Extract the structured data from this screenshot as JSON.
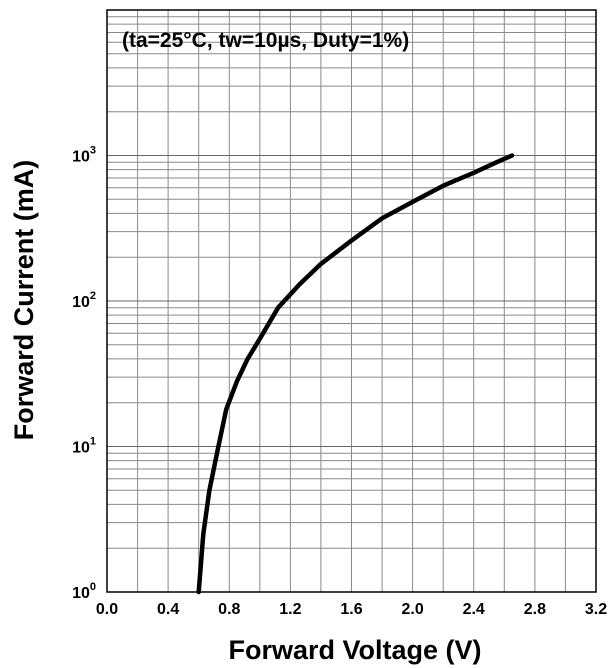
{
  "chart_data": {
    "type": "line",
    "title": "",
    "annotation": "(ta=25°C, tw=10µs, Duty=1%)",
    "xlabel": "Forward Voltage (V)",
    "ylabel": "Forward Current (mA)",
    "xlim": [
      0.0,
      3.2
    ],
    "ylim": [
      1,
      10000
    ],
    "yscale": "log",
    "grid": true,
    "x_ticks": [
      0.0,
      0.4,
      0.8,
      1.2,
      1.6,
      2.0,
      2.4,
      2.8,
      3.2
    ],
    "x_tick_labels": [
      "0.0",
      "0.4",
      "0.8",
      "1.2",
      "1.6",
      "2.0",
      "2.4",
      "2.8",
      "3.2"
    ],
    "y_ticks": [
      1,
      10,
      100,
      1000
    ],
    "y_tick_labels": [
      {
        "base": "10",
        "exp": "0"
      },
      {
        "base": "10",
        "exp": "1"
      },
      {
        "base": "10",
        "exp": "2"
      },
      {
        "base": "10",
        "exp": "3"
      }
    ],
    "series": [
      {
        "color": "#000000",
        "x": [
          0.6,
          0.63,
          0.67,
          0.72,
          0.78,
          0.85,
          0.92,
          1.0,
          1.12,
          1.26,
          1.4,
          1.6,
          1.8,
          2.0,
          2.2,
          2.4,
          2.55,
          2.65
        ],
        "y": [
          1.0,
          2.5,
          5.0,
          9.0,
          18.0,
          28.0,
          40.0,
          55.0,
          90.0,
          130.0,
          180.0,
          260.0,
          370.0,
          480.0,
          620.0,
          760.0,
          900.0,
          1000.0
        ]
      }
    ]
  }
}
